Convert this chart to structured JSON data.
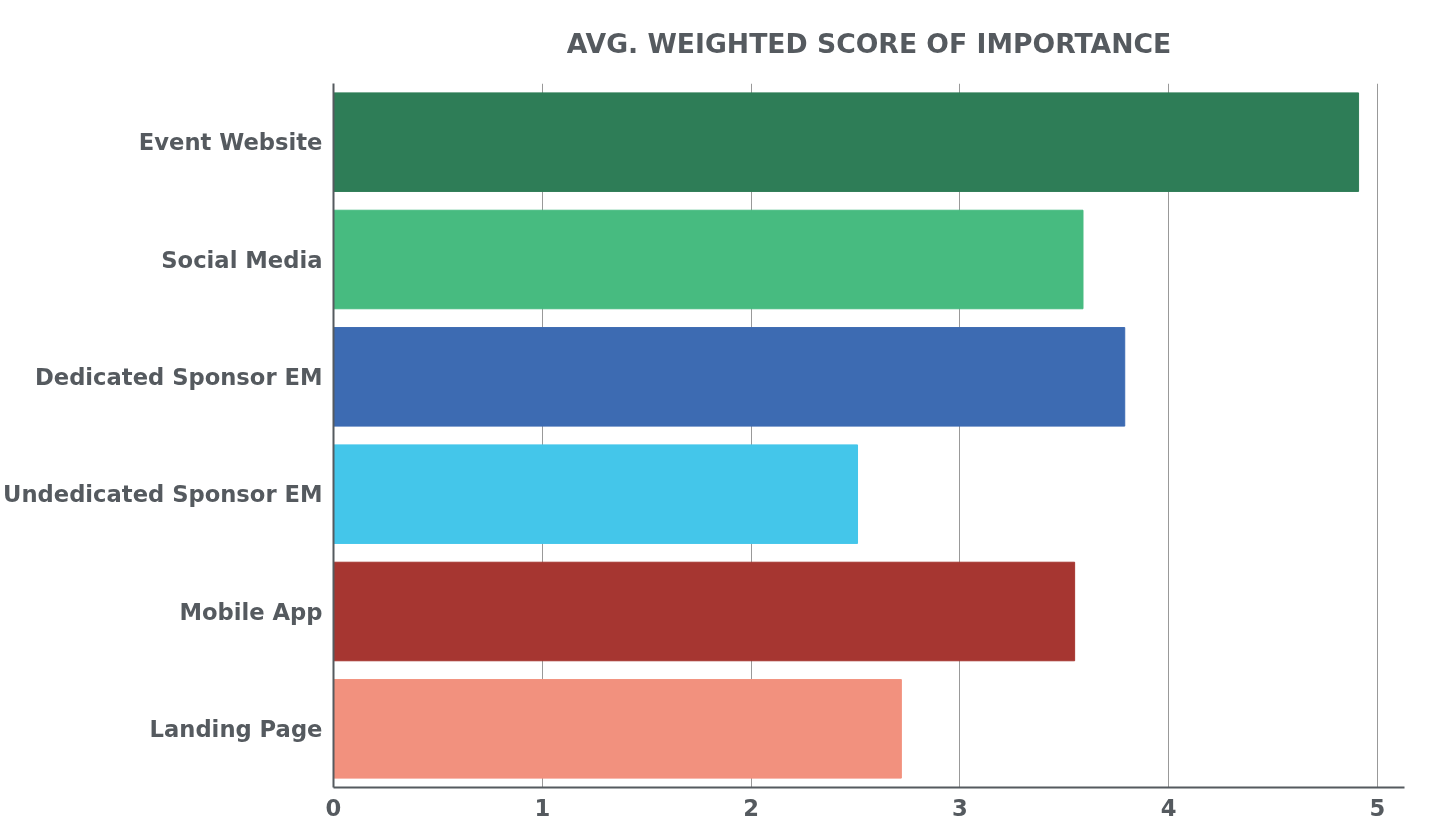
{
  "chart_data": {
    "type": "bar",
    "orientation": "horizontal",
    "title": "AVG. WEIGHTED SCORE OF IMPORTANCE",
    "categories": [
      "Event Website",
      "Social Media",
      "Dedicated Sponsor EM",
      "Undedicated Sponsor EM",
      "Mobile App",
      "Landing Page"
    ],
    "values": [
      4.91,
      3.59,
      3.79,
      2.51,
      3.55,
      2.72
    ],
    "colors": [
      "#2e7d57",
      "#47bb80",
      "#3d6bb2",
      "#44c6ea",
      "#a63631",
      "#f2917e"
    ],
    "xlim": [
      0,
      5.13
    ],
    "xticks": [
      0,
      1,
      2,
      3,
      4,
      5
    ],
    "grid": "x"
  }
}
